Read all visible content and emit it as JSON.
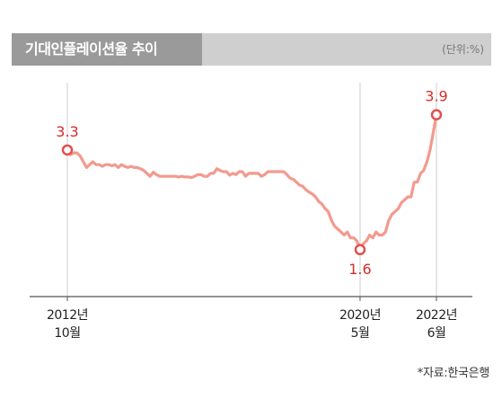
{
  "header": {
    "title": "기대인플레이션율 추이",
    "unit": "(단위:%)"
  },
  "source": "*자료:한국은행",
  "colors": {
    "line": "#f29a8e",
    "marker": "#e0504f",
    "label": "#d62d2a",
    "guide": "#cccccc",
    "axis": "#555555",
    "title_bg": "#cfcfcf",
    "title_tab": "#9a9a9a"
  },
  "chart_data": {
    "type": "line",
    "x_ticks": [
      {
        "month_index": 0,
        "line1": "2012년",
        "line2": "10월"
      },
      {
        "month_index": 92,
        "line1": "2020년",
        "line2": "5월"
      },
      {
        "month_index": 116,
        "line1": "2022년",
        "line2": "6월"
      }
    ],
    "x_range": [
      0,
      116
    ],
    "y_range": [
      0.8,
      4.6
    ],
    "values": [
      3.3,
      3.22,
      3.25,
      3.25,
      3.2,
      3.1,
      3.0,
      3.05,
      3.1,
      3.05,
      3.05,
      3.02,
      3.05,
      3.05,
      3.03,
      3.05,
      3.0,
      3.05,
      3.02,
      3.0,
      3.02,
      3.0,
      3.0,
      2.98,
      2.95,
      2.9,
      2.85,
      2.92,
      2.88,
      2.85,
      2.85,
      2.85,
      2.85,
      2.85,
      2.85,
      2.84,
      2.85,
      2.84,
      2.84,
      2.83,
      2.85,
      2.88,
      2.88,
      2.85,
      2.85,
      2.9,
      2.9,
      2.98,
      2.95,
      2.93,
      2.93,
      2.87,
      2.9,
      2.88,
      2.93,
      2.93,
      2.85,
      2.9,
      2.9,
      2.9,
      2.9,
      2.85,
      2.88,
      2.93,
      2.93,
      2.93,
      2.93,
      2.93,
      2.93,
      2.88,
      2.82,
      2.8,
      2.75,
      2.7,
      2.68,
      2.62,
      2.58,
      2.55,
      2.5,
      2.42,
      2.38,
      2.3,
      2.25,
      2.1,
      2.0,
      1.95,
      1.9,
      1.85,
      1.9,
      1.8,
      1.8,
      1.75,
      1.6,
      1.7,
      1.75,
      1.85,
      1.8,
      1.9,
      1.85,
      1.85,
      1.9,
      2.1,
      2.2,
      2.25,
      2.3,
      2.4,
      2.45,
      2.5,
      2.5,
      2.75,
      2.75,
      2.9,
      2.95,
      3.1,
      3.3,
      3.6,
      3.9
    ],
    "annotations": [
      {
        "month_index": 0,
        "value": 3.3,
        "label": "3.3",
        "position": "above"
      },
      {
        "month_index": 92,
        "value": 1.6,
        "label": "1.6",
        "position": "below"
      },
      {
        "month_index": 116,
        "value": 3.9,
        "label": "3.9",
        "position": "above"
      }
    ]
  }
}
